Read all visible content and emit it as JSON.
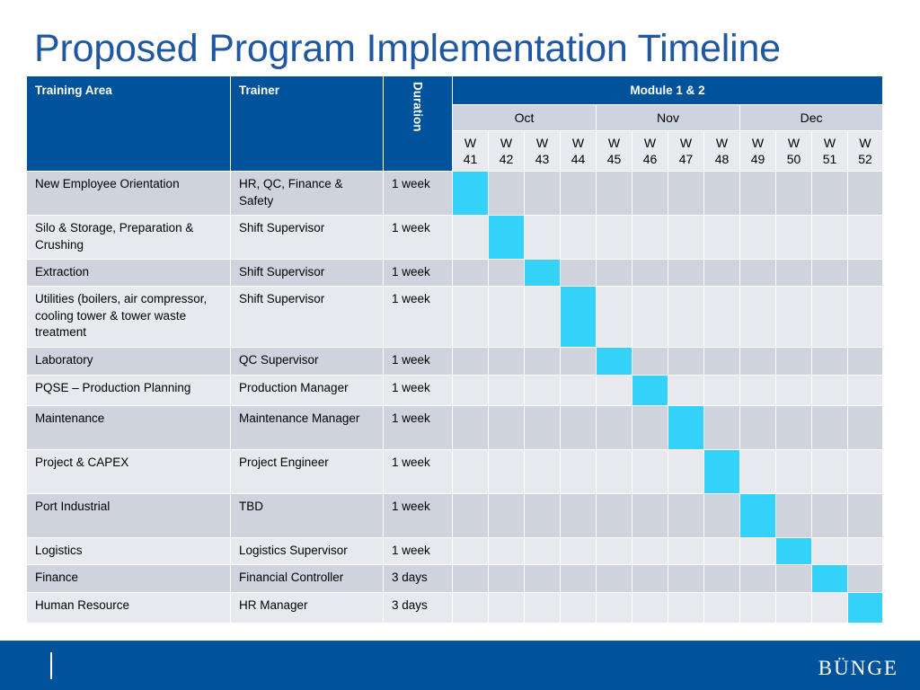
{
  "title": "Proposed Program Implementation Timeline",
  "table": {
    "header": {
      "training_area": "Training Area",
      "trainer": "Trainer",
      "duration": "Duration",
      "module": "Module 1 & 2"
    },
    "months": [
      {
        "label": "Oct",
        "span": 4
      },
      {
        "label": "Nov",
        "span": 4
      },
      {
        "label": "Dec",
        "span": 4
      }
    ],
    "weeks": [
      {
        "w": "W",
        "n": "41"
      },
      {
        "w": "W",
        "n": "42"
      },
      {
        "w": "W",
        "n": "43"
      },
      {
        "w": "W",
        "n": "44"
      },
      {
        "w": "W",
        "n": "45"
      },
      {
        "w": "W",
        "n": "46"
      },
      {
        "w": "W",
        "n": "47"
      },
      {
        "w": "W",
        "n": "48"
      },
      {
        "w": "W",
        "n": "49"
      },
      {
        "w": "W",
        "n": "50"
      },
      {
        "w": "W",
        "n": "51"
      },
      {
        "w": "W",
        "n": "52"
      }
    ],
    "rows": [
      {
        "area": "New Employee Orientation",
        "trainer": "HR, QC, Finance & Safety",
        "duration": "1 week",
        "active_week": 41
      },
      {
        "area": "Silo & Storage, Preparation & Crushing",
        "trainer": "Shift Supervisor",
        "duration": "1 week",
        "active_week": 42
      },
      {
        "area": "Extraction",
        "trainer": "Shift Supervisor",
        "duration": "1 week",
        "active_week": 43
      },
      {
        "area": "Utilities (boilers, air compressor, cooling tower & tower waste treatment",
        "trainer": "Shift Supervisor",
        "duration": "1 week",
        "active_week": 44
      },
      {
        "area": "Laboratory",
        "trainer": "QC  Supervisor",
        "duration": "1 week",
        "active_week": 45
      },
      {
        "area": "PQSE – Production Planning",
        "trainer": "Production Manager",
        "duration": "1 week",
        "active_week": 46
      },
      {
        "area": "Maintenance",
        "trainer": "Maintenance Manager",
        "duration": "1 week",
        "active_week": 47
      },
      {
        "area": "Project & CAPEX",
        "trainer": "Project Engineer",
        "duration": "1 week",
        "active_week": 48
      },
      {
        "area": "Port Industrial",
        "trainer": "TBD",
        "duration": "1 week",
        "active_week": 49
      },
      {
        "area": "Logistics",
        "trainer": "Logistics Supervisor",
        "duration": "1 week",
        "active_week": 50
      },
      {
        "area": "Finance",
        "trainer": "Financial Controller",
        "duration": "3 days",
        "active_week": 51
      },
      {
        "area": "Human Resource",
        "trainer": "HR Manager",
        "duration": "3 days",
        "active_week": 52
      }
    ]
  },
  "colors": {
    "header_blue": "#00529b",
    "title_blue": "#1f57a2",
    "highlight": "#34d2f8",
    "row_dark": "#ced3de",
    "row_light": "#e7e9ef"
  },
  "footer": {
    "logo": "BÜNGE"
  }
}
